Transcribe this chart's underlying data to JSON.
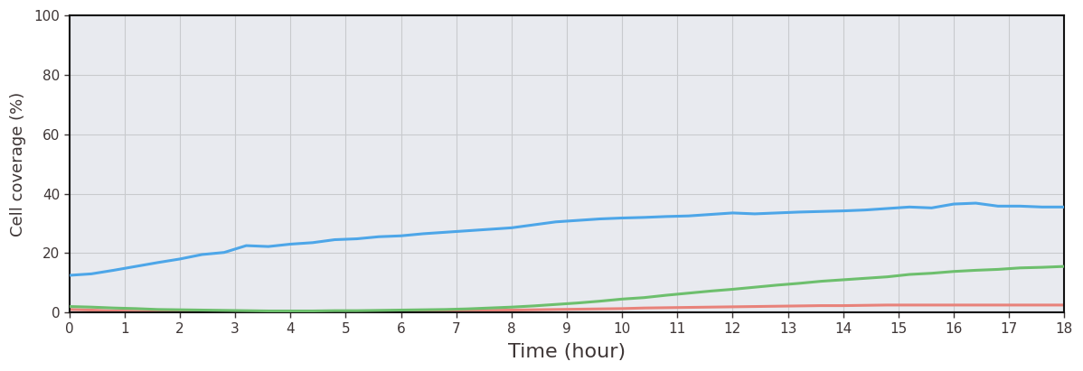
{
  "title": "",
  "xlabel": "Time (hour)",
  "ylabel": "Cell coverage (%)",
  "xlim": [
    0,
    18
  ],
  "ylim": [
    0,
    100
  ],
  "xticks": [
    0,
    1,
    2,
    3,
    4,
    5,
    6,
    7,
    8,
    9,
    10,
    11,
    12,
    13,
    14,
    15,
    16,
    17,
    18
  ],
  "yticks": [
    0,
    20,
    40,
    60,
    80,
    100
  ],
  "figure_bg_color": "#ffffff",
  "plot_bg_color": "#e8eaef",
  "grid_color": "#c8cacd",
  "blue_color": "#4da6e8",
  "green_color": "#6dbf6d",
  "red_color": "#e8827a",
  "black_color": "#111111",
  "spine_color": "#111111",
  "tick_label_color": "#3d3535",
  "blue_data": [
    12.5,
    13.0,
    14.2,
    15.5,
    16.8,
    18.0,
    19.5,
    20.2,
    22.5,
    22.2,
    23.0,
    23.5,
    24.5,
    24.8,
    25.5,
    25.8,
    26.5,
    27.0,
    27.5,
    28.0,
    28.5,
    29.5,
    30.5,
    31.0,
    31.5,
    31.8,
    32.0,
    32.3,
    32.5,
    33.0,
    33.5,
    33.2,
    33.5,
    33.8,
    34.0,
    34.2,
    34.5,
    35.0,
    35.5,
    35.2,
    36.5,
    36.8,
    35.8,
    35.8,
    35.5,
    35.5
  ],
  "green_data": [
    2.0,
    1.8,
    1.5,
    1.3,
    1.0,
    0.9,
    0.8,
    0.7,
    0.6,
    0.5,
    0.5,
    0.5,
    0.6,
    0.6,
    0.7,
    0.8,
    0.9,
    1.0,
    1.2,
    1.5,
    1.8,
    2.2,
    2.7,
    3.2,
    3.8,
    4.5,
    5.0,
    5.8,
    6.5,
    7.2,
    7.8,
    8.5,
    9.2,
    9.8,
    10.5,
    11.0,
    11.5,
    12.0,
    12.8,
    13.2,
    13.8,
    14.2,
    14.5,
    15.0,
    15.2,
    15.5
  ],
  "red_data": [
    1.0,
    0.8,
    0.5,
    0.4,
    0.3,
    0.3,
    0.3,
    0.3,
    0.3,
    0.3,
    0.3,
    0.3,
    0.3,
    0.3,
    0.4,
    0.4,
    0.5,
    0.5,
    0.6,
    0.7,
    0.8,
    0.9,
    1.0,
    1.1,
    1.2,
    1.3,
    1.5,
    1.6,
    1.7,
    1.8,
    1.9,
    2.0,
    2.1,
    2.2,
    2.3,
    2.3,
    2.4,
    2.5,
    2.5,
    2.5,
    2.5,
    2.5,
    2.5,
    2.5,
    2.5,
    2.5
  ],
  "black_data": [
    0.1,
    0.1,
    0.1,
    0.1,
    0.1,
    0.1,
    0.1,
    0.1,
    0.1,
    0.1,
    0.1,
    0.1,
    0.1,
    0.1,
    0.1,
    0.1,
    0.1,
    0.1,
    0.1,
    0.1,
    0.1,
    0.1,
    0.1,
    0.1,
    0.1,
    0.1,
    0.1,
    0.1,
    0.1,
    0.1,
    0.1,
    0.1,
    0.1,
    0.1,
    0.1,
    0.1,
    0.1,
    0.1,
    0.1,
    0.1,
    0.1,
    0.1,
    0.1,
    0.1,
    0.1,
    0.1
  ],
  "line_width": 2.2,
  "xlabel_fontsize": 16,
  "ylabel_fontsize": 13,
  "tick_fontsize": 11
}
